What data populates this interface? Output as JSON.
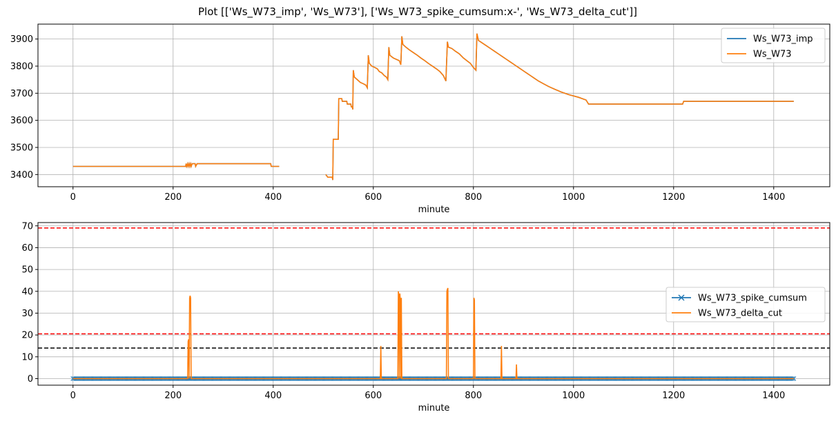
{
  "figure": {
    "title": "Plot [['Ws_W73_imp', 'Ws_W73'], ['Ws_W73_spike_cumsum:x-', 'Ws_W73_delta_cut']]"
  },
  "chart_data": [
    {
      "type": "line",
      "xlabel": "minute",
      "ylabel": "",
      "xlim": [
        -70,
        1512
      ],
      "ylim": [
        3355,
        3955
      ],
      "xticks": [
        0,
        200,
        400,
        600,
        800,
        1000,
        1200,
        1400
      ],
      "yticks": [
        3400,
        3500,
        3600,
        3700,
        3800,
        3900
      ],
      "grid": true,
      "legend": "top-right",
      "colors": {
        "imp": "#1f77b4",
        "raw": "#ff7f0e"
      },
      "series": [
        {
          "name": "Ws_W73_imp",
          "color": "#1f77b4",
          "points": [
            [
              0,
              3430
            ],
            [
              225,
              3430
            ],
            [
              226,
              3440
            ],
            [
              227,
              3430
            ],
            [
              229,
              3440
            ],
            [
              230,
              3430
            ],
            [
              232,
              3440
            ],
            [
              233,
              3430
            ],
            [
              235,
              3440
            ],
            [
              236,
              3430
            ],
            [
              238,
              3440
            ],
            [
              240,
              3440
            ],
            [
              244,
              3440
            ],
            [
              245,
              3430
            ],
            [
              248,
              3440
            ],
            [
              395,
              3440
            ],
            [
              396,
              3430
            ],
            [
              412,
              3430
            ],
            null,
            [
              505,
              3400
            ],
            [
              509,
              3390
            ],
            [
              518,
              3390
            ],
            [
              519,
              3380
            ],
            [
              520,
              3530
            ],
            [
              530,
              3530
            ],
            [
              531,
              3680
            ],
            [
              537,
              3680
            ],
            [
              538,
              3670
            ],
            [
              547,
              3670
            ],
            [
              548,
              3660
            ],
            [
              555,
              3660
            ],
            [
              556,
              3650
            ],
            [
              558,
              3650
            ],
            [
              559,
              3640
            ],
            [
              560,
              3785
            ],
            [
              562,
              3760
            ],
            [
              568,
              3750
            ],
            [
              574,
              3740
            ],
            [
              580,
              3735
            ],
            [
              585,
              3730
            ],
            [
              588,
              3720
            ],
            [
              590,
              3840
            ],
            [
              592,
              3810
            ],
            [
              597,
              3800
            ],
            [
              603,
              3795
            ],
            [
              608,
              3790
            ],
            [
              612,
              3780
            ],
            [
              617,
              3775
            ],
            [
              622,
              3765
            ],
            [
              626,
              3760
            ],
            [
              629,
              3750
            ],
            [
              631,
              3870
            ],
            [
              633,
              3840
            ],
            [
              640,
              3830
            ],
            [
              646,
              3825
            ],
            [
              652,
              3820
            ],
            [
              655,
              3805
            ],
            [
              657,
              3910
            ],
            [
              659,
              3880
            ],
            [
              665,
              3870
            ],
            [
              672,
              3860
            ],
            [
              680,
              3850
            ],
            [
              688,
              3840
            ],
            [
              695,
              3830
            ],
            [
              703,
              3820
            ],
            [
              710,
              3810
            ],
            [
              718,
              3800
            ],
            [
              726,
              3790
            ],
            [
              733,
              3780
            ],
            [
              740,
              3765
            ],
            [
              745,
              3745
            ],
            [
              748,
              3890
            ],
            [
              750,
              3870
            ],
            [
              757,
              3865
            ],
            [
              764,
              3855
            ],
            [
              772,
              3845
            ],
            [
              780,
              3830
            ],
            [
              787,
              3820
            ],
            [
              794,
              3810
            ],
            [
              800,
              3795
            ],
            [
              805,
              3785
            ],
            [
              807,
              3920
            ],
            [
              810,
              3895
            ],
            [
              818,
              3885
            ],
            [
              826,
              3875
            ],
            [
              834,
              3865
            ],
            [
              842,
              3855
            ],
            [
              850,
              3845
            ],
            [
              858,
              3835
            ],
            [
              866,
              3825
            ],
            [
              874,
              3815
            ],
            [
              882,
              3805
            ],
            [
              890,
              3795
            ],
            [
              898,
              3785
            ],
            [
              906,
              3775
            ],
            [
              914,
              3765
            ],
            [
              922,
              3755
            ],
            [
              930,
              3745
            ],
            [
              940,
              3735
            ],
            [
              950,
              3725
            ],
            [
              962,
              3715
            ],
            [
              975,
              3705
            ],
            [
              990,
              3695
            ],
            [
              1010,
              3685
            ],
            [
              1025,
              3675
            ],
            [
              1030,
              3660
            ],
            [
              1218,
              3660
            ],
            [
              1220,
              3670
            ],
            [
              1440,
              3670
            ]
          ]
        },
        {
          "name": "Ws_W73",
          "color": "#ff7f0e",
          "points": [
            [
              0,
              3430
            ],
            [
              225,
              3430
            ],
            [
              226,
              3440
            ],
            [
              227,
              3430
            ],
            [
              229,
              3440
            ],
            [
              230,
              3430
            ],
            [
              232,
              3440
            ],
            [
              233,
              3430
            ],
            [
              235,
              3440
            ],
            [
              236,
              3430
            ],
            [
              238,
              3440
            ],
            [
              240,
              3440
            ],
            [
              244,
              3440
            ],
            [
              245,
              3430
            ],
            [
              248,
              3440
            ],
            [
              395,
              3440
            ],
            [
              396,
              3430
            ],
            [
              412,
              3430
            ],
            null,
            [
              505,
              3400
            ],
            [
              509,
              3390
            ],
            [
              518,
              3390
            ],
            [
              519,
              3380
            ],
            [
              520,
              3530
            ],
            [
              530,
              3530
            ],
            [
              531,
              3680
            ],
            [
              537,
              3680
            ],
            [
              538,
              3670
            ],
            [
              547,
              3670
            ],
            [
              548,
              3660
            ],
            [
              555,
              3660
            ],
            [
              556,
              3650
            ],
            [
              558,
              3650
            ],
            [
              559,
              3640
            ],
            [
              560,
              3785
            ],
            [
              562,
              3760
            ],
            [
              568,
              3750
            ],
            [
              574,
              3740
            ],
            [
              580,
              3735
            ],
            [
              585,
              3730
            ],
            [
              588,
              3720
            ],
            [
              590,
              3840
            ],
            [
              592,
              3810
            ],
            [
              597,
              3800
            ],
            [
              603,
              3795
            ],
            [
              608,
              3790
            ],
            [
              612,
              3780
            ],
            [
              617,
              3775
            ],
            [
              622,
              3765
            ],
            [
              626,
              3760
            ],
            [
              629,
              3750
            ],
            [
              631,
              3870
            ],
            [
              633,
              3840
            ],
            [
              640,
              3830
            ],
            [
              646,
              3825
            ],
            [
              652,
              3820
            ],
            [
              655,
              3805
            ],
            [
              657,
              3910
            ],
            [
              659,
              3880
            ],
            [
              665,
              3870
            ],
            [
              672,
              3860
            ],
            [
              680,
              3850
            ],
            [
              688,
              3840
            ],
            [
              695,
              3830
            ],
            [
              703,
              3820
            ],
            [
              710,
              3810
            ],
            [
              718,
              3800
            ],
            [
              726,
              3790
            ],
            [
              733,
              3780
            ],
            [
              740,
              3765
            ],
            [
              745,
              3745
            ],
            [
              748,
              3890
            ],
            [
              750,
              3870
            ],
            [
              757,
              3865
            ],
            [
              764,
              3855
            ],
            [
              772,
              3845
            ],
            [
              780,
              3830
            ],
            [
              787,
              3820
            ],
            [
              794,
              3810
            ],
            [
              800,
              3795
            ],
            [
              805,
              3785
            ],
            [
              807,
              3920
            ],
            [
              810,
              3895
            ],
            [
              818,
              3885
            ],
            [
              826,
              3875
            ],
            [
              834,
              3865
            ],
            [
              842,
              3855
            ],
            [
              850,
              3845
            ],
            [
              858,
              3835
            ],
            [
              866,
              3825
            ],
            [
              874,
              3815
            ],
            [
              882,
              3805
            ],
            [
              890,
              3795
            ],
            [
              898,
              3785
            ],
            [
              906,
              3775
            ],
            [
              914,
              3765
            ],
            [
              922,
              3755
            ],
            [
              930,
              3745
            ],
            [
              940,
              3735
            ],
            [
              950,
              3725
            ],
            [
              962,
              3715
            ],
            [
              975,
              3705
            ],
            [
              990,
              3695
            ],
            [
              1010,
              3685
            ],
            [
              1025,
              3675
            ],
            [
              1030,
              3660
            ],
            [
              1218,
              3660
            ],
            [
              1220,
              3670
            ],
            [
              1440,
              3670
            ]
          ]
        }
      ]
    },
    {
      "type": "line",
      "xlabel": "minute",
      "ylabel": "",
      "xlim": [
        -70,
        1512
      ],
      "ylim": [
        -3,
        71.5
      ],
      "xticks": [
        0,
        200,
        400,
        600,
        800,
        1000,
        1200,
        1400
      ],
      "yticks": [
        0,
        10,
        20,
        30,
        40,
        50,
        60,
        70
      ],
      "grid": true,
      "legend": "center-right",
      "hlines": [
        {
          "y": 69,
          "color": "#ff0000",
          "style": "dashed"
        },
        {
          "y": 20.5,
          "color": "#ff0000",
          "style": "dashed"
        },
        {
          "y": 14,
          "color": "#000000",
          "style": "dashed"
        }
      ],
      "series": [
        {
          "name": "Ws_W73_spike_cumsum",
          "color": "#1f77b4",
          "marker": "x",
          "points": [
            [
              0,
              0
            ],
            [
              1440,
              0
            ]
          ]
        },
        {
          "name": "Ws_W73_delta_cut",
          "color": "#ff7f0e",
          "marker": "",
          "points": [
            [
              0,
              0
            ],
            [
              229,
              0
            ],
            [
              230,
              17
            ],
            [
              231,
              18
            ],
            [
              232,
              0
            ],
            [
              233,
              37
            ],
            [
              234,
              38
            ],
            [
              235,
              37
            ],
            [
              236,
              0
            ],
            [
              614,
              0
            ],
            [
              615,
              15
            ],
            [
              616,
              0
            ],
            [
              649,
              0
            ],
            [
              650,
              40
            ],
            [
              651,
              38
            ],
            [
              652,
              0
            ],
            [
              653,
              39
            ],
            [
              654,
              36
            ],
            [
              655,
              0
            ],
            [
              656,
              37
            ],
            [
              657,
              0
            ],
            [
              746,
              0
            ],
            [
              747,
              40
            ],
            [
              748,
              41
            ],
            [
              749,
              41.5
            ],
            [
              750,
              0
            ],
            [
              800,
              0
            ],
            [
              801,
              37
            ],
            [
              802,
              36
            ],
            [
              803,
              0
            ],
            [
              855,
              0
            ],
            [
              856,
              15
            ],
            [
              857,
              0
            ],
            [
              885,
              0
            ],
            [
              886,
              6.5
            ],
            [
              887,
              0
            ],
            [
              1440,
              0
            ]
          ]
        }
      ]
    }
  ]
}
